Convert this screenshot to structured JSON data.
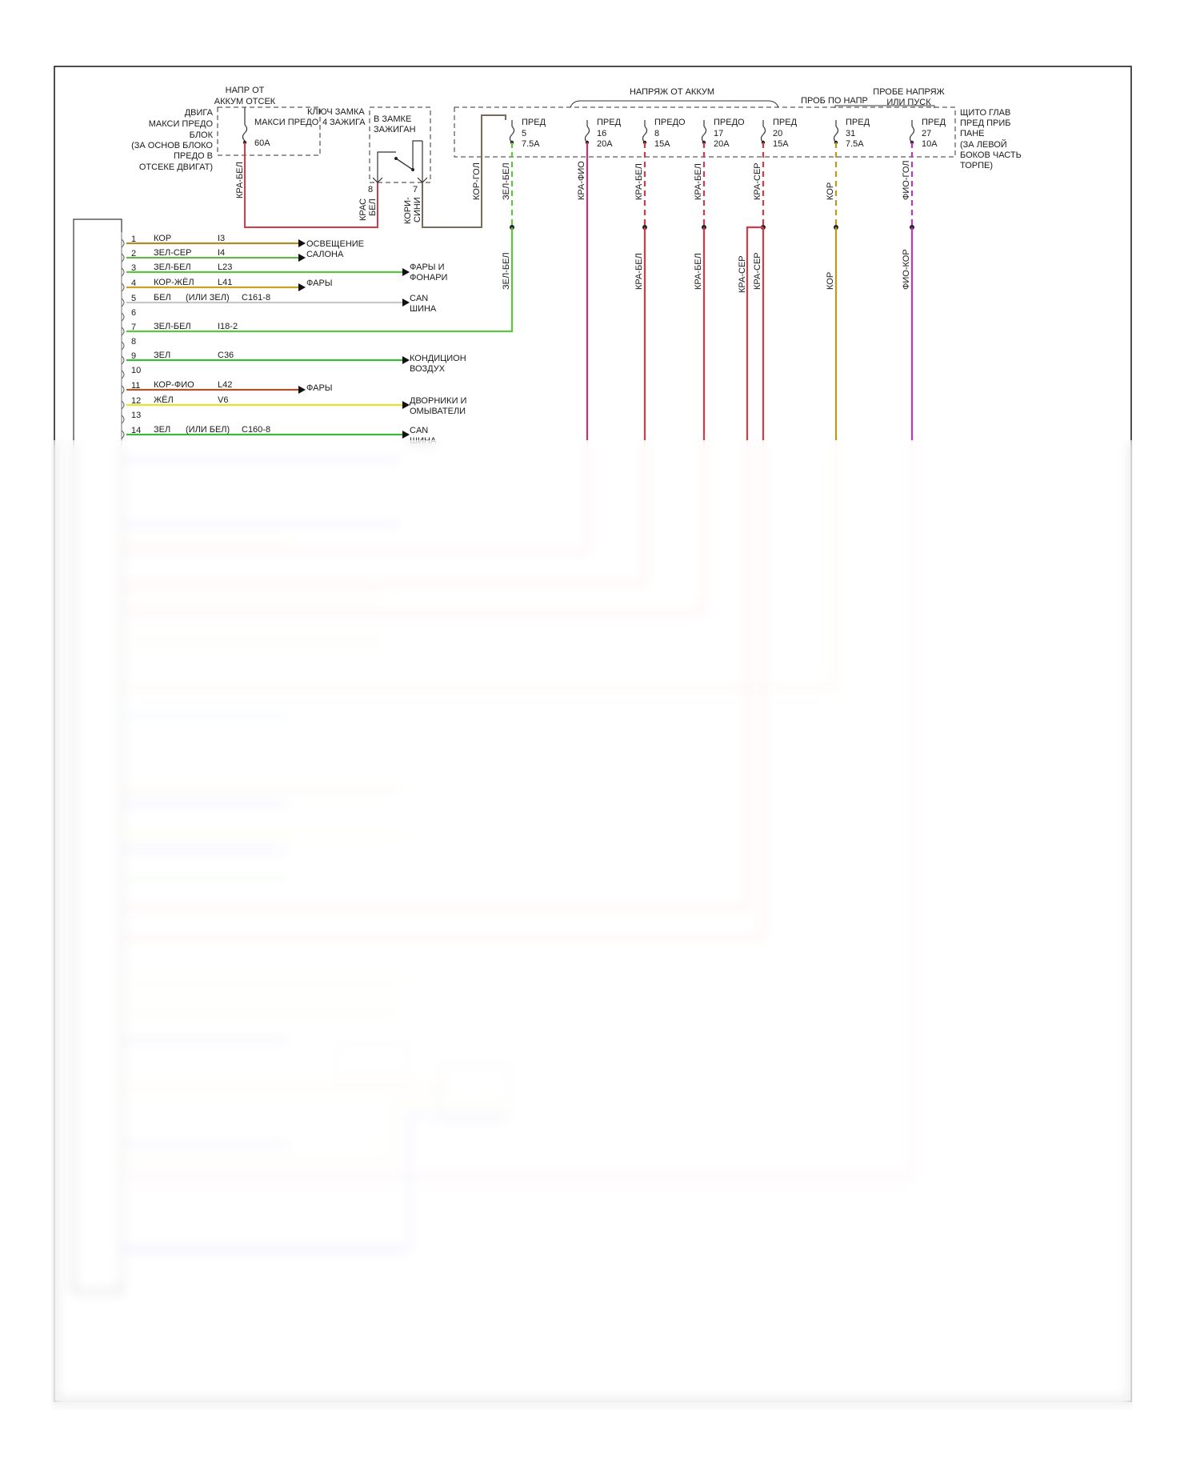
{
  "top_labels": {
    "batt_engine": [
      "НАПР ОТ",
      "АККУМ ОТСЕК"
    ],
    "maxi_block": [
      "ДВИГА",
      "МАКСИ ПРЕДО",
      "БЛОК",
      "(ЗА ОСНОВ БЛОКО",
      "ПРЕДО В",
      "ОТСЕКЕ ДВИГАТ)"
    ],
    "maxi_fuse": [
      "МАКСИ ПРЕДО",
      "4",
      "60A"
    ],
    "ignition_key": [
      "КЛЮЧ ЗАМКА",
      "ЗАЖИГА"
    ],
    "ignition_lock": [
      "В ЗАМКЕ",
      "ЗАЖИГАН"
    ],
    "batt_voltage": "НАПРЯЖ ОТ АККУМ",
    "probe_voltage": "ПРОБ ПО НАПР",
    "probe_start": [
      "ПРОБЕ НАПРЯЖ",
      "ИЛИ ПУСК"
    ],
    "panel": [
      "ЩИТО ГЛАВ",
      "ПРЕД ПРИБ",
      "ПАНЕ",
      "(ЗА ЛЕВОЙ",
      "БОКОВ ЧАСТЬ",
      "ТОРПЕ)"
    ]
  },
  "fuses": [
    {
      "name": "ПРЕД",
      "num": "5",
      "amp": "7.5A",
      "wire_top": "ЗЕЛ-БЕЛ",
      "wire_bottom": "ЗЕЛ-БЕЛ",
      "color": "#5cc43e"
    },
    {
      "name": "ПРЕД",
      "num": "16",
      "amp": "20A",
      "wire_top": "КРА-ФИО",
      "wire_bottom": "",
      "color": "#c8326e"
    },
    {
      "name": "ПРЕДО",
      "num": "8",
      "amp": "15A",
      "wire_top": "КРА-БЕЛ",
      "wire_bottom": "КРА-БЕЛ",
      "color": "#d63a48"
    },
    {
      "name": "ПРЕДО",
      "num": "17",
      "amp": "20A",
      "wire_top": "КРА-БЕЛ",
      "wire_bottom": "КРА-БЕЛ",
      "color": "#d63a48"
    },
    {
      "name": "ПРЕД",
      "num": "20",
      "amp": "15A",
      "wire_top": "КРА-СЕР",
      "wire_bottom": "КРА-СЕР",
      "color": "#d63a48"
    },
    {
      "name": "ПРЕД",
      "num": "31",
      "amp": "7.5A",
      "wire_top": "КОР",
      "wire_bottom": "КОР",
      "color": "#b89a1e"
    },
    {
      "name": "ПРЕД",
      "num": "27",
      "amp": "10A",
      "wire_top": "ФИО-ГОЛ",
      "wire_bottom": "ФИО-КОР",
      "color": "#c036c0"
    }
  ],
  "extra_wire_labels": {
    "maxi_out": "КРА-БЕЛ",
    "ign_pin8": "8",
    "ign_pin7": "7",
    "ign_wire8": "КРАС",
    "ign_wire8b": "БЕЛ",
    "ign_wire7": "КОРИ-",
    "ign_wire7b": "СИНИ",
    "ign_out": "КОР-ГОЛ",
    "fuse20_second": "КРА-СЕР"
  },
  "pins": [
    {
      "num": "1",
      "wire": "КОР",
      "circuit": "I3",
      "color": "#b08a22"
    },
    {
      "num": "2",
      "wire": "ЗЕЛ-СЕР",
      "circuit": "I4",
      "color": "#6ab04c"
    },
    {
      "num": "3",
      "wire": "ЗЕЛ-БЕЛ",
      "circuit": "L23",
      "color": "#5cc43e"
    },
    {
      "num": "4",
      "wire": "КОР-ЖЁЛ",
      "circuit": "L41",
      "color": "#c9a227"
    },
    {
      "num": "5",
      "wire": "БЕЛ",
      "note": "(ИЛИ ЗЕЛ)",
      "circuit": "C161-8",
      "color": "#c8c8c8"
    },
    {
      "num": "6",
      "wire": "",
      "circuit": "",
      "color": ""
    },
    {
      "num": "7",
      "wire": "ЗЕЛ-БЕЛ",
      "circuit": "I18-2",
      "color": "#5cc43e"
    },
    {
      "num": "8",
      "wire": "",
      "circuit": "",
      "color": ""
    },
    {
      "num": "9",
      "wire": "ЗЕЛ",
      "circuit": "C36",
      "color": "#3cb83c"
    },
    {
      "num": "10",
      "wire": "",
      "circuit": "",
      "color": ""
    },
    {
      "num": "11",
      "wire": "КОР-ФИО",
      "circuit": "L42",
      "color": "#b0522e"
    },
    {
      "num": "12",
      "wire": "ЖЁЛ",
      "circuit": "V6",
      "color": "#e8e030"
    },
    {
      "num": "13",
      "wire": "",
      "circuit": "",
      "color": ""
    },
    {
      "num": "14",
      "wire": "ЗЕЛ",
      "note": "(ИЛИ БЕЛ)",
      "circuit": "C160-8",
      "color": "#3cb83c"
    }
  ],
  "destinations": [
    {
      "id": "salon",
      "lines": [
        "ОСВЕЩЕНИЕ",
        "САЛОНА"
      ]
    },
    {
      "id": "headlamps",
      "lines": [
        "ФАРЫ И",
        "ФОНАРИ"
      ]
    },
    {
      "id": "fary1",
      "lines": [
        "ФАРЫ"
      ]
    },
    {
      "id": "can1",
      "lines": [
        "CAN",
        "ШИНА"
      ]
    },
    {
      "id": "ac",
      "lines": [
        "КОНДИЦИОН",
        "ВОЗДУХ"
      ]
    },
    {
      "id": "fary2",
      "lines": [
        "ФАРЫ"
      ]
    },
    {
      "id": "wipers",
      "lines": [
        "ДВОРНИКИ И",
        "ОМЫВАТЕЛИ"
      ]
    },
    {
      "id": "can2",
      "lines": [
        "CAN",
        "ШИНА"
      ]
    }
  ]
}
